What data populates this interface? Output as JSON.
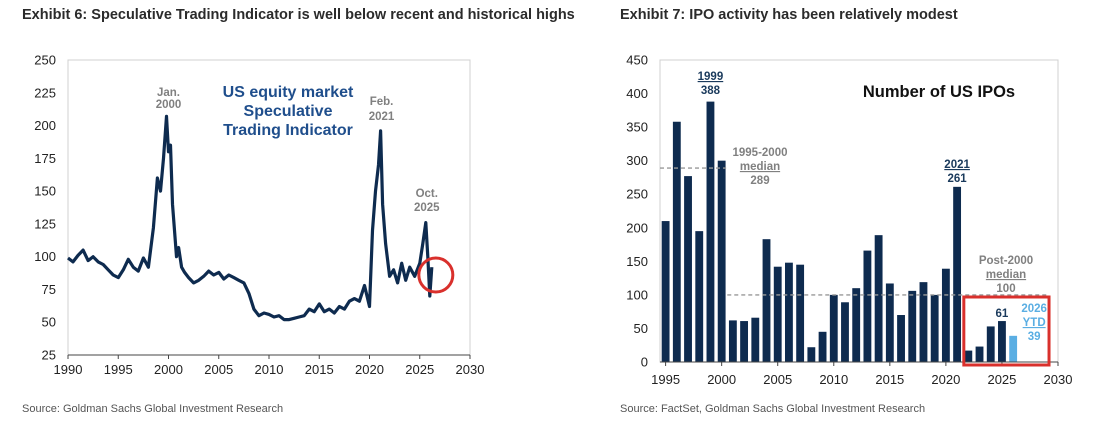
{
  "exhibits": [
    {
      "title": "Exhibit 6: Speculative Trading Indicator is well below recent and historical highs",
      "source": "Source: Goldman Sachs Global Investment Research",
      "chart_data": {
        "type": "line",
        "title": "US equity market Speculative Trading Indicator",
        "title_lines": [
          "US equity market",
          "Speculative",
          "Trading Indicator"
        ],
        "xlabel": "",
        "ylabel": "",
        "xlim": [
          1990,
          2030
        ],
        "ylim": [
          25,
          250
        ],
        "xticks": [
          1990,
          1995,
          2000,
          2005,
          2010,
          2015,
          2020,
          2025,
          2030
        ],
        "yticks": [
          25,
          50,
          75,
          100,
          125,
          150,
          175,
          200,
          225,
          250
        ],
        "grid": false,
        "legend": "none",
        "series_color": "#0e2b4f",
        "highlight_circle_color": "#d9302c",
        "series": [
          {
            "x": [
              1990.0,
              1990.5,
              1991.0,
              1991.5,
              1992.0,
              1992.5,
              1993.0,
              1993.5,
              1994.0,
              1994.5,
              1995.0,
              1995.5,
              1996.0,
              1996.5,
              1997.0,
              1997.5,
              1998.0,
              1998.5,
              1998.9,
              1999.2,
              1999.5,
              1999.8,
              2000.0,
              2000.2,
              2000.4,
              2000.6,
              2000.8,
              2001.0,
              2001.3,
              2001.6,
              2002.0,
              2002.5,
              2003.0,
              2003.5,
              2004.0,
              2004.5,
              2005.0,
              2005.5,
              2006.0,
              2006.5,
              2007.0,
              2007.5,
              2008.0,
              2008.5,
              2009.0,
              2009.5,
              2010.0,
              2010.5,
              2011.0,
              2011.5,
              2012.0,
              2012.5,
              2013.0,
              2013.5,
              2014.0,
              2014.5,
              2015.0,
              2015.5,
              2016.0,
              2016.5,
              2017.0,
              2017.5,
              2018.0,
              2018.5,
              2019.0,
              2019.5,
              2020.0,
              2020.3,
              2020.6,
              2020.9,
              2021.1,
              2021.3,
              2021.6,
              2022.0,
              2022.4,
              2022.8,
              2023.2,
              2023.6,
              2024.0,
              2024.5,
              2025.0,
              2025.3,
              2025.6,
              2025.8,
              2026.0,
              2026.2
            ],
            "y": [
              99,
              96,
              101,
              105,
              97,
              100,
              96,
              94,
              90,
              86,
              84,
              90,
              98,
              92,
              89,
              99,
              92,
              122,
              160,
              150,
              175,
              207,
              180,
              185,
              140,
              120,
              100,
              107,
              92,
              88,
              84,
              80,
              82,
              85,
              89,
              86,
              88,
              83,
              86,
              84,
              82,
              80,
              72,
              60,
              55,
              57,
              56,
              54,
              55,
              52,
              52,
              53,
              54,
              55,
              60,
              58,
              64,
              58,
              60,
              57,
              62,
              60,
              66,
              68,
              66,
              78,
              62,
              120,
              150,
              170,
              196,
              140,
              110,
              85,
              90,
              80,
              95,
              82,
              92,
              85,
              95,
              110,
              126,
              100,
              70,
              92
            ]
          }
        ],
        "annotations": [
          {
            "lines": [
              "Jan.",
              "2000"
            ],
            "x": 2000.0
          },
          {
            "lines": [
              "Feb.",
              "2021"
            ],
            "x": 2021.2
          },
          {
            "lines": [
              "Oct.",
              "2025"
            ],
            "x": 2025.7
          }
        ],
        "highlight": {
          "x": 2026.6,
          "y": 86
        }
      }
    },
    {
      "title": "Exhibit 7: IPO activity has been relatively modest",
      "source": "Source: FactSet, Goldman Sachs Global Investment Research",
      "chart_data": {
        "type": "bar",
        "title": "Number of US IPOs",
        "xlabel": "",
        "ylabel": "",
        "xlim": [
          1994.5,
          2030
        ],
        "ylim": [
          0,
          450
        ],
        "xticks": [
          1995,
          2000,
          2005,
          2010,
          2015,
          2020,
          2025,
          2030
        ],
        "yticks": [
          0,
          50,
          100,
          150,
          200,
          250,
          300,
          350,
          400,
          450
        ],
        "grid": false,
        "legend": "none",
        "bar_color": "#0e2b4f",
        "ytd_bar_color": "#5aaee3",
        "box_color": "#d9302c",
        "categories": [
          1995,
          1996,
          1997,
          1998,
          1999,
          2000,
          2001,
          2002,
          2003,
          2004,
          2005,
          2006,
          2007,
          2008,
          2009,
          2010,
          2011,
          2012,
          2013,
          2014,
          2015,
          2016,
          2017,
          2018,
          2019,
          2020,
          2021,
          2022,
          2023,
          2024,
          2025,
          2026
        ],
        "values": [
          210,
          358,
          277,
          195,
          388,
          300,
          62,
          61,
          66,
          183,
          142,
          148,
          145,
          22,
          45,
          100,
          89,
          110,
          166,
          189,
          117,
          70,
          106,
          119,
          100,
          139,
          261,
          17,
          23,
          53,
          61,
          39
        ],
        "reference_lines": [
          {
            "label_lines": [
              "1995-2000",
              "median",
              "289"
            ],
            "value": 289,
            "from": 1994.5,
            "to": 2000.4
          },
          {
            "label_lines": [
              "Post-2000",
              "median",
              "100"
            ],
            "value": 100,
            "from": 2000.5,
            "to": 2029
          }
        ],
        "data_labels": [
          {
            "x": 1999,
            "lines": [
              "1999",
              "388"
            ]
          },
          {
            "x": 2021,
            "lines": [
              "2021",
              "261"
            ]
          },
          {
            "x": 2025,
            "lines": [
              "61"
            ]
          },
          {
            "x": 2026,
            "lines": [
              "2026",
              "YTD",
              "39"
            ]
          }
        ]
      }
    }
  ]
}
